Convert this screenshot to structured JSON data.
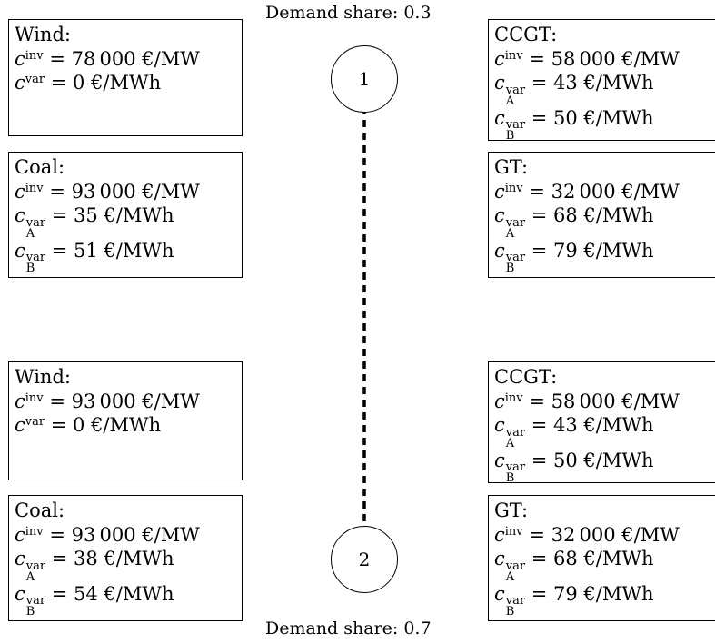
{
  "node1": {
    "label": "1",
    "demand_share": "Demand share: 0.3",
    "left_units": [
      {
        "name": "Wind:",
        "inv": "= 78 000 €/MW",
        "var": "= 0 €/MWh"
      },
      {
        "name": "Coal:",
        "inv": "= 93 000 €/MW",
        "var_A": "= 35 €/MWh",
        "var_B": "= 51 €/MWh"
      }
    ],
    "right_units": [
      {
        "name": "CCGT:",
        "inv": "= 58 000 €/MW",
        "var_A": "= 43 €/MWh",
        "var_B": "= 50 €/MWh"
      },
      {
        "name": "GT:",
        "inv": "= 32 000 €/MW",
        "var_A": "= 68 €/MWh",
        "var_B": "= 79 €/MWh"
      }
    ]
  },
  "node2": {
    "label": "2",
    "demand_share": "Demand share: 0.7",
    "left_units": [
      {
        "name": "Wind:",
        "inv": "= 93 000 €/MW",
        "var": "= 0 €/MWh"
      },
      {
        "name": "Coal:",
        "inv": "= 93 000 €/MW",
        "var_A": "= 38 €/MWh",
        "var_B": "= 54 €/MWh"
      }
    ],
    "right_units": [
      {
        "name": "CCGT:",
        "inv": "= 58 000 €/MW",
        "var_A": "= 43 €/MWh",
        "var_B": "= 50 €/MWh"
      },
      {
        "name": "GT:",
        "inv": "= 32 000 €/MW",
        "var_A": "= 68 €/MWh",
        "var_B": "= 79 €/MWh"
      }
    ]
  },
  "symbols": {
    "cost": "c",
    "inv": "inv",
    "var": "var",
    "sub_A": "A",
    "sub_B": "B"
  }
}
